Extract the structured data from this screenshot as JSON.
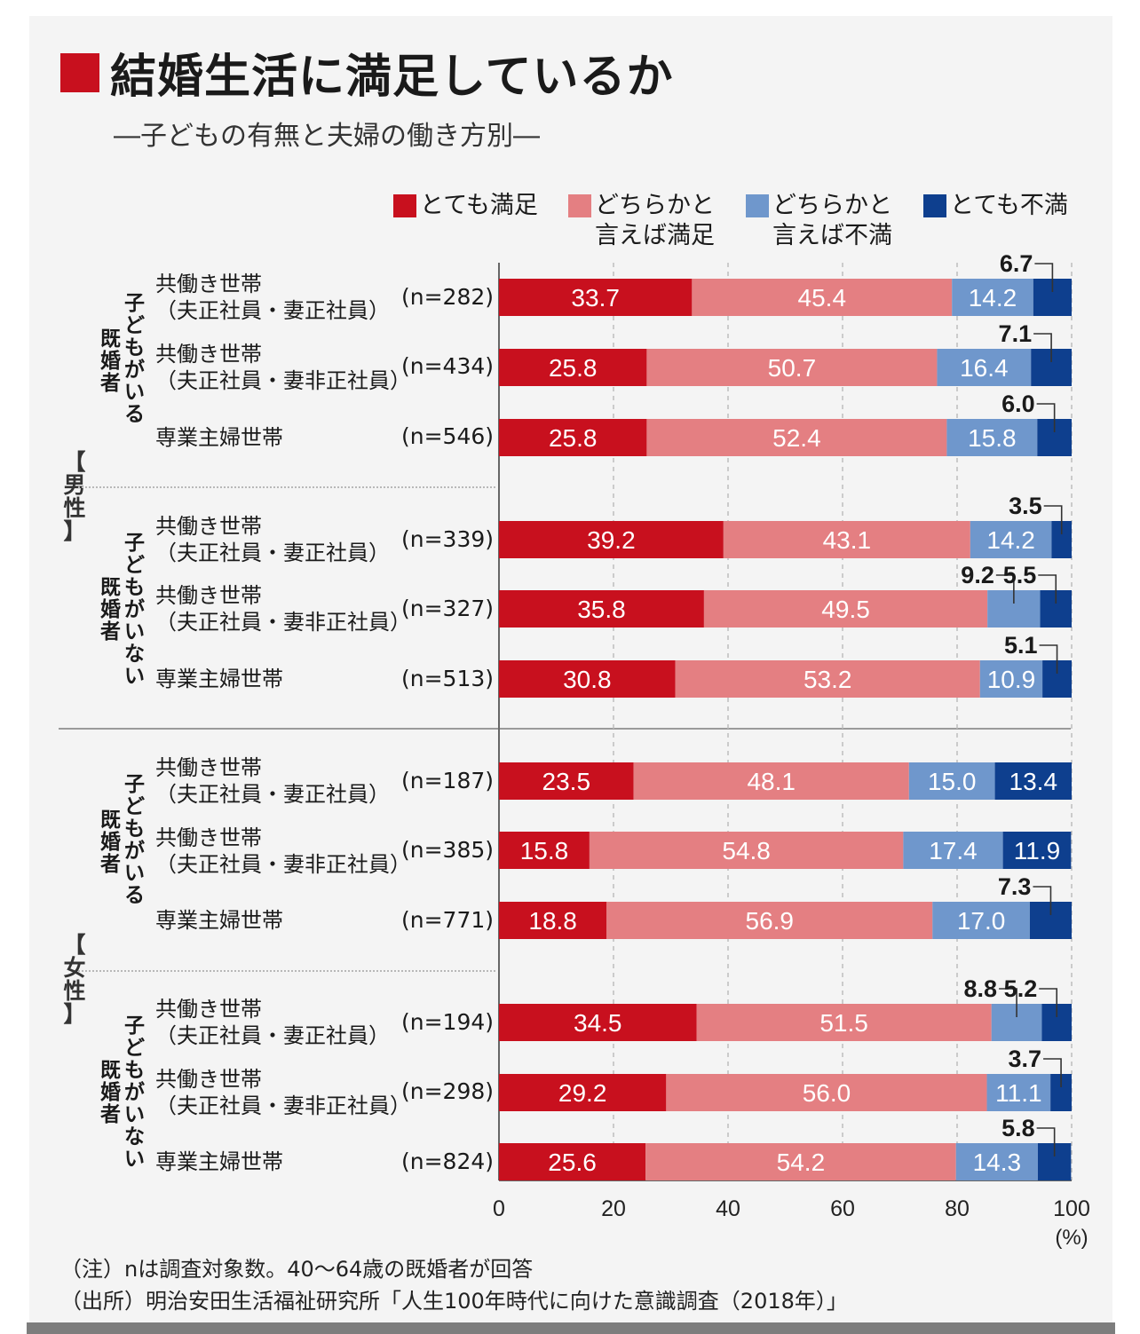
{
  "title": "結婚生活に満足しているか",
  "subtitle": "―子どもの有無と夫婦の働き方別―",
  "legend": [
    {
      "label": "とても満足",
      "color": "#c8101e",
      "icon": "square-swatch"
    },
    {
      "label": "どちらかと\n言えば満足",
      "color": "#e47f82",
      "icon": "square-swatch"
    },
    {
      "label": "どちらかと\n言えば不満",
      "color": "#6f97cc",
      "icon": "square-swatch"
    },
    {
      "label": "とても不満",
      "color": "#0e3f8e",
      "icon": "square-swatch"
    }
  ],
  "sections": [
    {
      "label": "【男性】"
    },
    {
      "label": "【女性】"
    }
  ],
  "groups": [
    {
      "label": "子どもがいる\n既婚者"
    },
    {
      "label": "子どもがいない\n既婚者"
    },
    {
      "label": "子どもがいる\n既婚者"
    },
    {
      "label": "子どもがいない\n既婚者"
    }
  ],
  "rows": [
    {
      "label": "共働き世帯\n（夫正社員・妻正社員）",
      "n": "(n=282)"
    },
    {
      "label": "共働き世帯\n（夫正社員・妻非正社員）",
      "n": "(n=434)"
    },
    {
      "label": "専業主婦世帯",
      "n": "(n=546)"
    },
    {
      "label": "共働き世帯\n（夫正社員・妻正社員）",
      "n": "(n=339)"
    },
    {
      "label": "共働き世帯\n（夫正社員・妻非正社員）",
      "n": "(n=327)"
    },
    {
      "label": "専業主婦世帯",
      "n": "(n=513)"
    },
    {
      "label": "共働き世帯\n（夫正社員・妻正社員）",
      "n": "(n=187)"
    },
    {
      "label": "共働き世帯\n（夫正社員・妻非正社員）",
      "n": "(n=385)"
    },
    {
      "label": "専業主婦世帯",
      "n": "(n=771)"
    },
    {
      "label": "共働き世帯\n（夫正社員・妻正社員）",
      "n": "(n=194)"
    },
    {
      "label": "共働き世帯\n（夫正社員・妻非正社員）",
      "n": "(n=298)"
    },
    {
      "label": "専業主婦世帯",
      "n": "(n=824)"
    }
  ],
  "x_unit": "(%)",
  "footnote": "（注）nは調査対象数。40～64歳の既婚者が回答\n（出所）明治安田生活福祉研究所「人生100年時代に向けた意識調査（2018年）」",
  "chart_data": {
    "type": "bar",
    "orientation": "horizontal",
    "stacked": true,
    "title": "結婚生活に満足しているか",
    "subtitle": "―子どもの有無と夫婦の働き方別―",
    "xlabel": "(%)",
    "ylabel": "",
    "xlim": [
      0,
      100
    ],
    "xticks": [
      0,
      20,
      40,
      60,
      80,
      100
    ],
    "grid": true,
    "legend_position": "top-right",
    "categories": [
      "男性・子どもがいる既婚者・共働き世帯（夫正社員・妻正社員）",
      "男性・子どもがいる既婚者・共働き世帯（夫正社員・妻非正社員）",
      "男性・子どもがいる既婚者・専業主婦世帯",
      "男性・子どもがいない既婚者・共働き世帯（夫正社員・妻正社員）",
      "男性・子どもがいない既婚者・共働き世帯（夫正社員・妻非正社員）",
      "男性・子どもがいない既婚者・専業主婦世帯",
      "女性・子どもがいる既婚者・共働き世帯（夫正社員・妻正社員）",
      "女性・子どもがいる既婚者・共働き世帯（夫正社員・妻非正社員）",
      "女性・子どもがいる既婚者・専業主婦世帯",
      "女性・子どもがいない既婚者・共働き世帯（夫正社員・妻正社員）",
      "女性・子どもがいない既婚者・共働き世帯（夫正社員・妻非正社員）",
      "女性・子どもがいない既婚者・専業主婦世帯"
    ],
    "series": [
      {
        "name": "とても満足",
        "color": "#c8101e",
        "values": [
          33.7,
          25.8,
          25.8,
          39.2,
          35.8,
          30.8,
          23.5,
          15.8,
          18.8,
          34.5,
          29.2,
          25.6
        ]
      },
      {
        "name": "どちらかと言えば満足",
        "color": "#e47f82",
        "values": [
          45.4,
          50.7,
          52.4,
          43.1,
          49.5,
          53.2,
          48.1,
          54.8,
          56.9,
          51.5,
          56.0,
          54.2
        ]
      },
      {
        "name": "どちらかと言えば不満",
        "color": "#6f97cc",
        "values": [
          14.2,
          16.4,
          15.8,
          14.2,
          9.2,
          10.9,
          15.0,
          17.4,
          17.0,
          8.8,
          11.1,
          14.3
        ]
      },
      {
        "name": "とても不満",
        "color": "#0e3f8e",
        "values": [
          6.7,
          7.1,
          6.0,
          3.5,
          5.5,
          5.1,
          13.4,
          11.9,
          7.3,
          5.2,
          3.7,
          5.8
        ]
      }
    ]
  }
}
